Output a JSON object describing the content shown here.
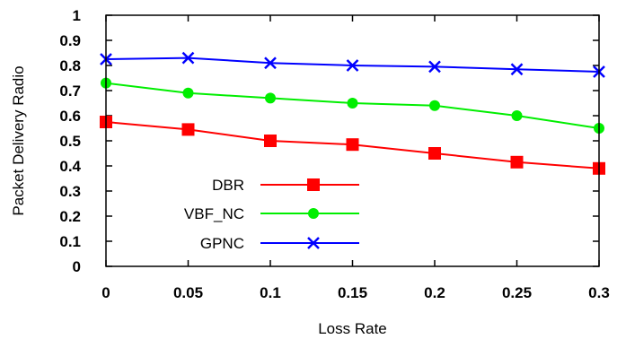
{
  "chart_data": {
    "type": "line",
    "xlabel": "Loss Rate",
    "ylabel": "Packet Delivery Radio",
    "x": [
      0,
      0.05,
      0.1,
      0.15,
      0.2,
      0.25,
      0.3
    ],
    "x_tick_labels": [
      "0",
      "0.05",
      "0.1",
      "0.15",
      "0.2",
      "0.25",
      "0.3"
    ],
    "y_ticks": [
      0,
      0.1,
      0.2,
      0.3,
      0.4,
      0.5,
      0.6,
      0.7,
      0.8,
      0.9,
      1
    ],
    "y_tick_labels": [
      "0",
      "0.1",
      "0.2",
      "0.3",
      "0.4",
      "0.5",
      "0.6",
      "0.7",
      "0.8",
      "0.9",
      "1"
    ],
    "xlim": [
      0,
      0.3
    ],
    "ylim": [
      0,
      1
    ],
    "grid": false,
    "legend_position": "bottom-left",
    "series": [
      {
        "name": "DBR",
        "color": "#ff0000",
        "marker": "square",
        "values": [
          0.575,
          0.545,
          0.5,
          0.485,
          0.45,
          0.415,
          0.39
        ]
      },
      {
        "name": "VBF_NC",
        "color": "#00ee00",
        "marker": "circle",
        "values": [
          0.73,
          0.69,
          0.67,
          0.65,
          0.64,
          0.6,
          0.55
        ]
      },
      {
        "name": "GPNC",
        "color": "#0000ff",
        "marker": "x",
        "values": [
          0.825,
          0.83,
          0.81,
          0.8,
          0.795,
          0.785,
          0.775
        ]
      }
    ]
  }
}
